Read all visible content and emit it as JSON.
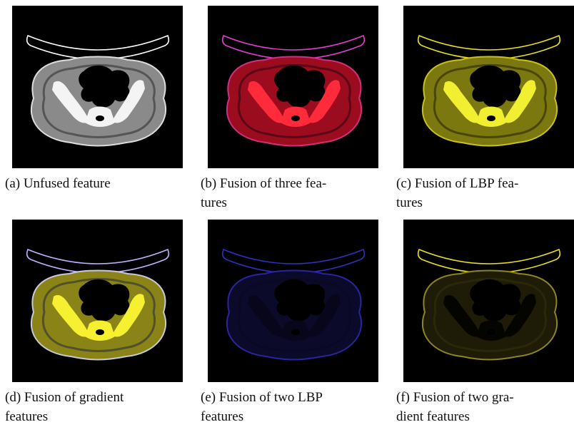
{
  "figures": [
    {
      "lines": [
        "(a) Unfused feature"
      ]
    },
    {
      "lines": [
        "(b) Fusion of three fea-",
        "tures"
      ]
    },
    {
      "lines": [
        "(c) Fusion of LBP fea-",
        "tures"
      ]
    },
    {
      "lines": [
        "(d) Fusion of gradient",
        "features"
      ]
    },
    {
      "lines": [
        "(e) Fusion of two LBP",
        "features"
      ]
    },
    {
      "lines": [
        "(f) Fusion of two gra-",
        "dient features"
      ]
    }
  ]
}
